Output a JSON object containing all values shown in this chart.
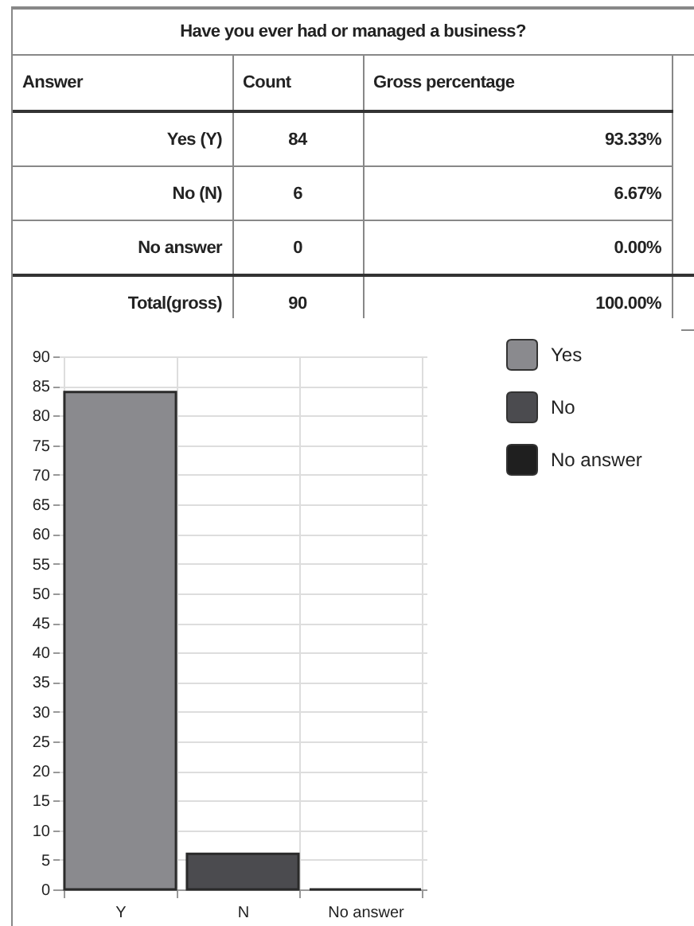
{
  "chart_data": [
    {
      "type": "other",
      "title": "Have you ever had or managed a business?",
      "xlabel": "Answer",
      "categories": [
        "Yes (Y)",
        "No (N)",
        "No answer",
        "Total(gross)"
      ],
      "series": [
        {
          "name": "Count",
          "values": [
            84,
            6,
            0,
            90
          ]
        },
        {
          "name": "Gross percentage",
          "values": [
            93.33,
            6.67,
            0,
            100
          ],
          "value_labels": [
            "93.33%",
            "6.67%",
            "0.00%",
            "100.00%"
          ]
        }
      ],
      "data_labels": true
    },
    {
      "type": "bar",
      "categories": [
        "Y",
        "N",
        "No answer"
      ],
      "series": [
        {
          "name": "Yes",
          "color": "#8a8a8e",
          "values": [
            84,
            null,
            null
          ]
        },
        {
          "name": "No",
          "color": "#4b4b4f",
          "values": [
            null,
            6,
            null
          ]
        },
        {
          "name": "No answer",
          "color": "#1f1f1f",
          "values": [
            null,
            null,
            0
          ]
        }
      ],
      "stacked": true,
      "ylim": [
        0,
        90
      ],
      "yticks": [
        0,
        5,
        10,
        15,
        20,
        25,
        30,
        35,
        40,
        45,
        50,
        55,
        60,
        65,
        70,
        75,
        80,
        85,
        90
      ],
      "grid": true,
      "legend": "top right"
    }
  ]
}
